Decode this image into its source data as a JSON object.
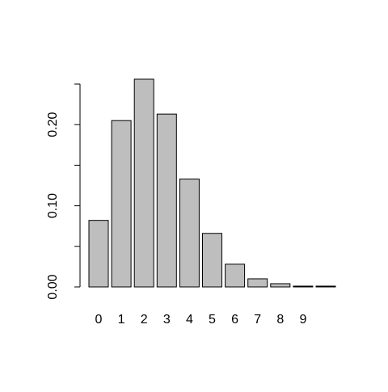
{
  "chart_data": {
    "type": "bar",
    "categories": [
      "0",
      "1",
      "2",
      "3",
      "4",
      "5",
      "6",
      "7",
      "8",
      "9",
      ""
    ],
    "values": [
      0.082,
      0.205,
      0.256,
      0.213,
      0.133,
      0.066,
      0.028,
      0.01,
      0.004,
      0.001,
      0.001
    ],
    "title": "",
    "xlabel": "",
    "ylabel": "",
    "ylim": [
      0,
      0.25
    ],
    "yticks": [
      "0.00",
      "0.05",
      "0.10",
      "0.15",
      "0.20",
      "0.25"
    ],
    "ytick_values": [
      0,
      0.05,
      0.1,
      0.15,
      0.2,
      0.25
    ],
    "ytick_labels_shown": [
      "0.00",
      "",
      "0.10",
      "",
      "0.20",
      ""
    ],
    "grid": false,
    "legend": "none"
  },
  "colors": {
    "bar_fill": "#bebebe",
    "bar_stroke": "#000000",
    "axis": "#000000",
    "text": "#000000",
    "background": "#ffffff"
  }
}
